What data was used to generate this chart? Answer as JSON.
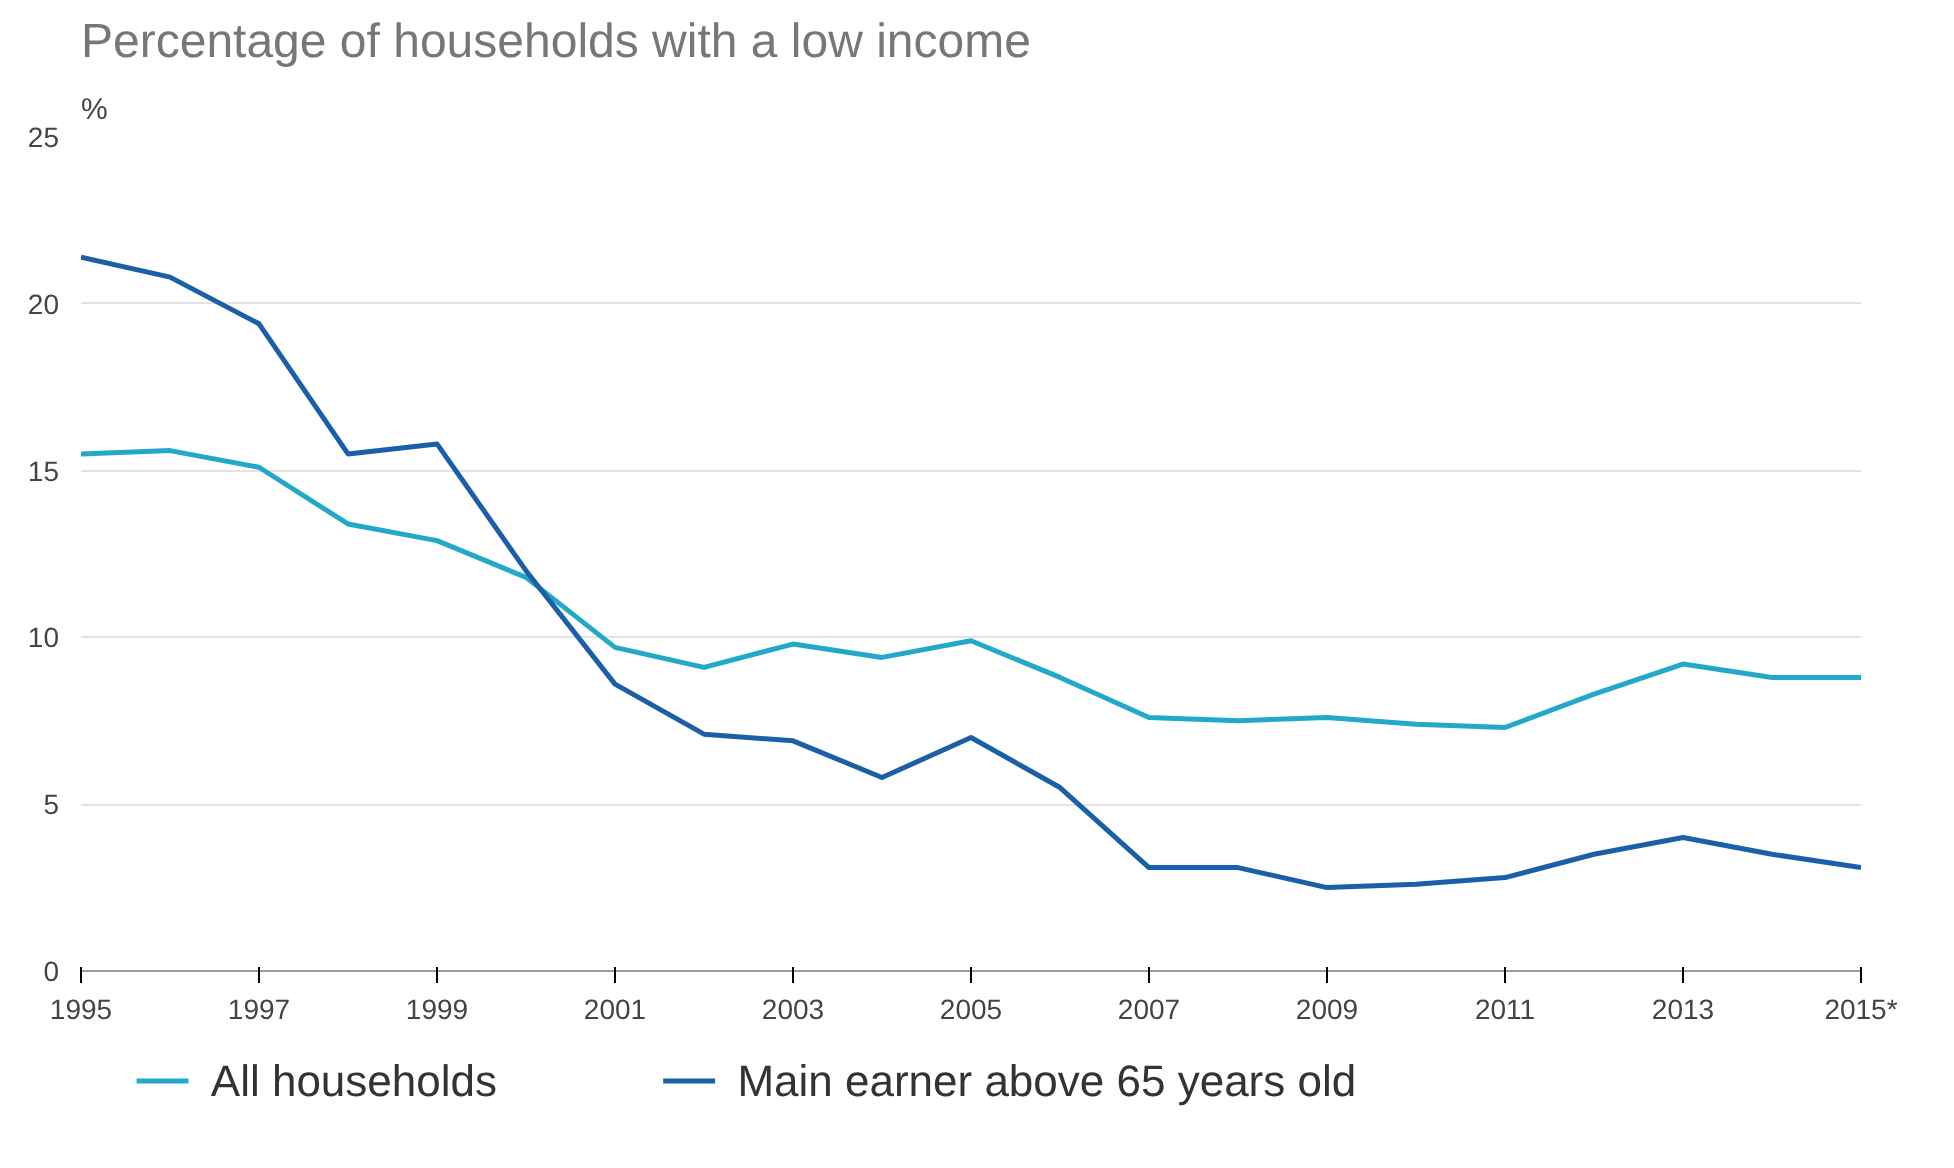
{
  "chart_data": {
    "type": "line",
    "title": "Percentage of households with a low income",
    "ylabel": "%",
    "x": [
      1995,
      1996,
      1997,
      1998,
      1999,
      2000,
      2001,
      2002,
      2003,
      2004,
      2005,
      2006,
      2007,
      2008,
      2009,
      2010,
      2011,
      2012,
      2013,
      2014,
      2015
    ],
    "series": [
      {
        "name": "All households",
        "color": "#22a9c9",
        "values": [
          15.5,
          15.6,
          15.1,
          13.4,
          12.9,
          11.8,
          9.7,
          9.1,
          9.8,
          9.4,
          9.9,
          8.8,
          7.6,
          7.5,
          7.6,
          7.4,
          7.3,
          8.3,
          9.2,
          8.8,
          8.8
        ]
      },
      {
        "name": "Main earner above 65 years old",
        "color": "#1b5fa8",
        "values": [
          21.4,
          20.8,
          19.4,
          15.5,
          15.8,
          12.0,
          8.6,
          7.1,
          6.9,
          5.8,
          7.0,
          5.5,
          3.1,
          3.1,
          2.5,
          2.6,
          2.8,
          3.5,
          4.0,
          3.5,
          3.1
        ]
      }
    ],
    "xlim": [
      1995,
      2015
    ],
    "xticks": [
      1995,
      1997,
      1999,
      2001,
      2003,
      2005,
      2007,
      2009,
      2011,
      2013,
      {
        "value": 2015,
        "label": "2015*"
      }
    ],
    "ylim": [
      0,
      25
    ],
    "yticks": [
      0,
      5,
      10,
      15,
      20,
      25
    ],
    "grid": "y",
    "legend": "bottom",
    "marker": "none",
    "line_style": "solid"
  }
}
